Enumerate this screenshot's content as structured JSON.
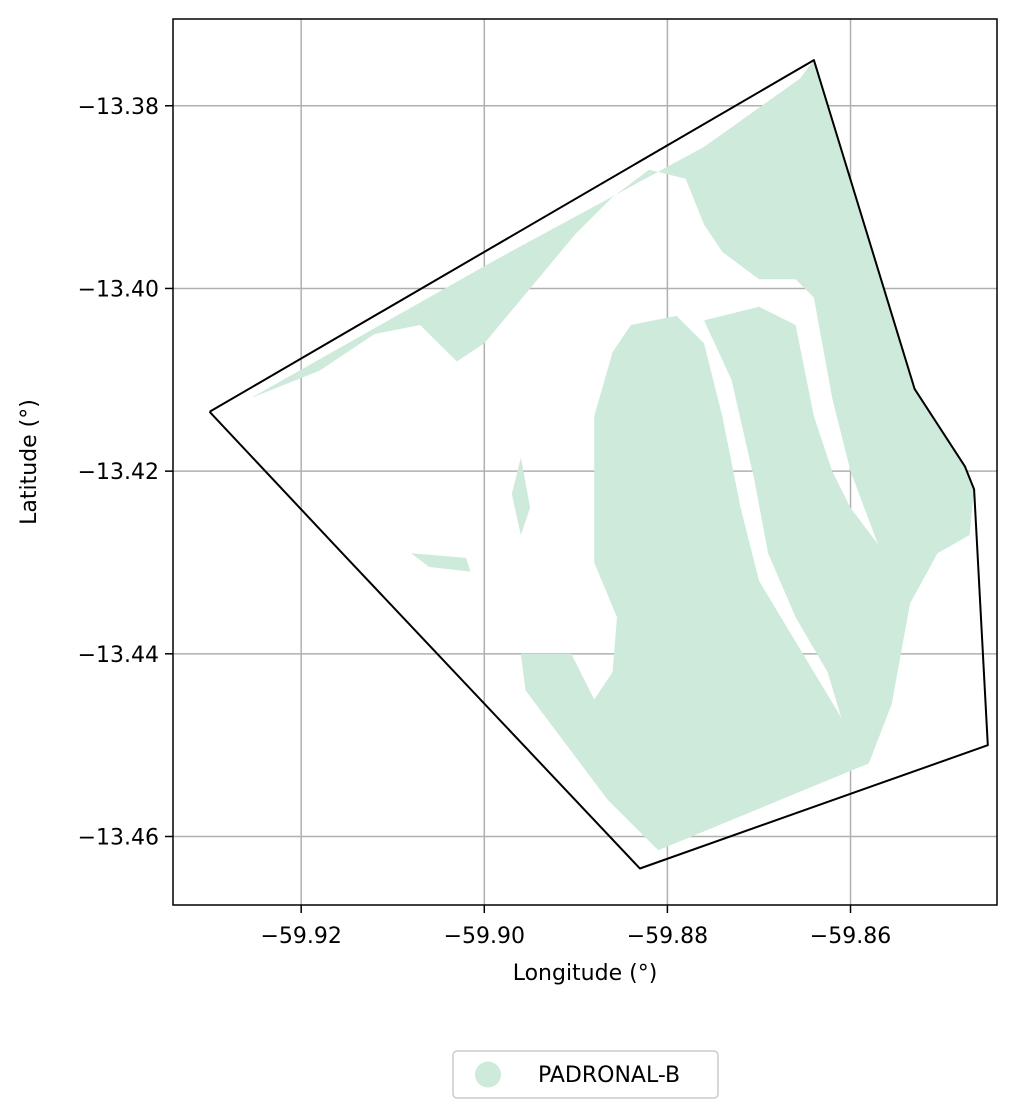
{
  "chart_data": {
    "type": "map",
    "xlabel": "Longitude (°)",
    "ylabel": "Latitude (°)",
    "xlim": [
      -59.934,
      -59.844
    ],
    "ylim": [
      -13.4675,
      -13.3705
    ],
    "grid": true,
    "x_ticks": [
      {
        "value": -59.92,
        "label": "−59.92"
      },
      {
        "value": -59.9,
        "label": "−59.90"
      },
      {
        "value": -59.88,
        "label": "−59.88"
      },
      {
        "value": -59.86,
        "label": "−59.86"
      }
    ],
    "y_ticks": [
      {
        "value": -13.38,
        "label": "−13.38"
      },
      {
        "value": -13.4,
        "label": "−13.40"
      },
      {
        "value": -13.42,
        "label": "−13.42"
      },
      {
        "value": -13.44,
        "label": "−13.44"
      },
      {
        "value": -13.46,
        "label": "−13.46"
      }
    ],
    "boundary": {
      "stroke_color": "#000000",
      "points": [
        [
          -59.93,
          -13.4135
        ],
        [
          -59.864,
          -13.375
        ],
        [
          -59.853,
          -13.411
        ],
        [
          -59.8475,
          -13.4195
        ],
        [
          -59.8465,
          -13.422
        ],
        [
          -59.845,
          -13.45
        ],
        [
          -59.883,
          -13.4635
        ],
        [
          -59.9155,
          -13.429
        ],
        [
          -59.93,
          -13.4135
        ]
      ]
    },
    "class_fill_color": "#cdeadb",
    "legend": {
      "placement": "bottom-center",
      "entries": [
        {
          "label": "PADRONAL-B",
          "color": "#cdeadb",
          "marker": "circle"
        }
      ]
    },
    "regions": [
      {
        "class": "PADRONAL-B",
        "points": [
          [
            -59.9255,
            -13.412
          ],
          [
            -59.899,
            -13.397
          ],
          [
            -59.876,
            -13.3845
          ],
          [
            -59.8655,
            -13.377
          ],
          [
            -59.864,
            -13.375
          ],
          [
            -59.853,
            -13.411
          ],
          [
            -59.8475,
            -13.4195
          ],
          [
            -59.8465,
            -13.422
          ],
          [
            -59.847,
            -13.427
          ],
          [
            -59.8505,
            -13.429
          ],
          [
            -59.8535,
            -13.4345
          ],
          [
            -59.8555,
            -13.4455
          ],
          [
            -59.858,
            -13.452
          ],
          [
            -59.881,
            -13.4615
          ],
          [
            -59.8865,
            -13.456
          ],
          [
            -59.8955,
            -13.444
          ],
          [
            -59.896,
            -13.44
          ],
          [
            -59.8905,
            -13.44
          ],
          [
            -59.888,
            -13.445
          ],
          [
            -59.886,
            -13.442
          ],
          [
            -59.8855,
            -13.436
          ],
          [
            -59.888,
            -13.43
          ],
          [
            -59.888,
            -13.414
          ],
          [
            -59.886,
            -13.407
          ],
          [
            -59.884,
            -13.404
          ],
          [
            -59.879,
            -13.403
          ],
          [
            -59.876,
            -13.406
          ],
          [
            -59.874,
            -13.414
          ],
          [
            -59.872,
            -13.424
          ],
          [
            -59.87,
            -13.432
          ],
          [
            -59.867,
            -13.437
          ],
          [
            -59.864,
            -13.442
          ],
          [
            -59.861,
            -13.447
          ],
          [
            -59.8625,
            -13.442
          ],
          [
            -59.866,
            -13.436
          ],
          [
            -59.869,
            -13.429
          ],
          [
            -59.8705,
            -13.421
          ],
          [
            -59.873,
            -13.41
          ],
          [
            -59.876,
            -13.4035
          ],
          [
            -59.87,
            -13.402
          ],
          [
            -59.866,
            -13.404
          ],
          [
            -59.864,
            -13.414
          ],
          [
            -59.862,
            -13.42
          ],
          [
            -59.86,
            -13.424
          ],
          [
            -59.857,
            -13.428
          ],
          [
            -59.86,
            -13.42
          ],
          [
            -59.862,
            -13.412
          ],
          [
            -59.864,
            -13.401
          ],
          [
            -59.866,
            -13.399
          ],
          [
            -59.87,
            -13.399
          ],
          [
            -59.874,
            -13.396
          ],
          [
            -59.876,
            -13.393
          ],
          [
            -59.878,
            -13.388
          ],
          [
            -59.882,
            -13.387
          ],
          [
            -59.886,
            -13.39
          ],
          [
            -59.89,
            -13.394
          ],
          [
            -59.895,
            -13.4
          ],
          [
            -59.9,
            -13.406
          ],
          [
            -59.903,
            -13.408
          ],
          [
            -59.907,
            -13.404
          ],
          [
            -59.912,
            -13.405
          ],
          [
            -59.918,
            -13.409
          ],
          [
            -59.9255,
            -13.412
          ]
        ]
      },
      {
        "class": "PADRONAL-B",
        "points": [
          [
            -59.908,
            -13.429
          ],
          [
            -59.902,
            -13.4295
          ],
          [
            -59.9015,
            -13.431
          ],
          [
            -59.906,
            -13.4305
          ],
          [
            -59.908,
            -13.429
          ]
        ]
      },
      {
        "class": "PADRONAL-B",
        "points": [
          [
            -59.896,
            -13.4185
          ],
          [
            -59.895,
            -13.424
          ],
          [
            -59.896,
            -13.427
          ],
          [
            -59.897,
            -13.4225
          ],
          [
            -59.896,
            -13.4185
          ]
        ]
      }
    ]
  }
}
